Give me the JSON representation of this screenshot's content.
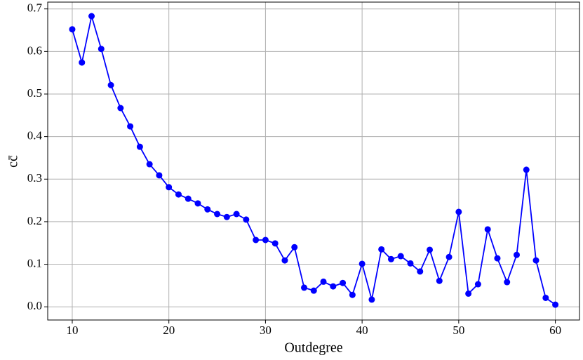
{
  "chart_data": {
    "type": "line",
    "x_label": "Outdegree",
    "y_label": "cc̄",
    "x": [
      10,
      11,
      12,
      13,
      14,
      15,
      16,
      17,
      18,
      19,
      20,
      21,
      22,
      23,
      24,
      25,
      26,
      27,
      28,
      29,
      30,
      31,
      32,
      33,
      34,
      35,
      36,
      37,
      38,
      39,
      40,
      41,
      42,
      43,
      44,
      45,
      46,
      47,
      48,
      49,
      50,
      51,
      52,
      53,
      54,
      55,
      56,
      57,
      58,
      59,
      60
    ],
    "series": [
      {
        "color": "#0000ff",
        "values": [
          0.652,
          0.574,
          0.683,
          0.606,
          0.521,
          0.467,
          0.424,
          0.376,
          0.335,
          0.309,
          0.281,
          0.264,
          0.254,
          0.243,
          0.229,
          0.218,
          0.211,
          0.218,
          0.205,
          0.157,
          0.157,
          0.149,
          0.109,
          0.14,
          0.045,
          0.038,
          0.059,
          0.048,
          0.056,
          0.028,
          0.101,
          0.017,
          0.135,
          0.112,
          0.119,
          0.102,
          0.083,
          0.134,
          0.061,
          0.117,
          0.223,
          0.031,
          0.053,
          0.182,
          0.114,
          0.058,
          0.122,
          0.322,
          0.109,
          0.021,
          0.005
        ]
      }
    ],
    "xlim": [
      7.46,
      62.5
    ],
    "ylim": [
      -0.031,
      0.716
    ],
    "xticks": [
      10,
      20,
      30,
      40,
      50,
      60
    ],
    "yticks": [
      {
        "value": 0,
        "label": "0.0"
      },
      0.1,
      0.2,
      0.3,
      0.4,
      0.5,
      0.6,
      0.7
    ],
    "grid": true
  }
}
